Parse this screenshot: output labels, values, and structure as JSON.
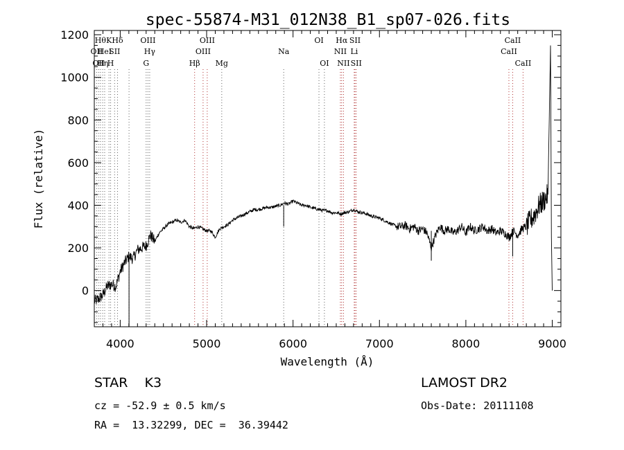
{
  "chart_data": {
    "type": "line",
    "title": "spec-55874-M31_012N38_B1_sp07-026.fits",
    "xlabel": "Wavelength (Å)",
    "ylabel": "Flux (relative)",
    "xlim": [
      3700,
      9100
    ],
    "ylim": [
      -170,
      1220
    ],
    "xticks": [
      4000,
      5000,
      6000,
      7000,
      8000,
      9000
    ],
    "yticks": [
      0,
      200,
      400,
      600,
      800,
      1000,
      1200
    ],
    "grid": false,
    "series": [
      {
        "x": [
          3700,
          3750,
          3800,
          3850,
          3900,
          3950,
          4000,
          4050,
          4100,
          4150,
          4200,
          4250,
          4300,
          4350,
          4400,
          4450,
          4500,
          4550,
          4600,
          4650,
          4700,
          4750,
          4800,
          4850,
          4900,
          4950,
          5000,
          5050,
          5100,
          5150,
          5200,
          5250,
          5300,
          5350,
          5400,
          5450,
          5500,
          5550,
          5600,
          5650,
          5700,
          5750,
          5800,
          5850,
          5900,
          5950,
          6000,
          6050,
          6100,
          6150,
          6200,
          6250,
          6300,
          6350,
          6400,
          6450,
          6500,
          6550,
          6600,
          6650,
          6700,
          6750,
          6800,
          6850,
          6900,
          6950,
          7000,
          7050,
          7100,
          7150,
          7200,
          7250,
          7300,
          7350,
          7400,
          7450,
          7500,
          7550,
          7600,
          7650,
          7700,
          7750,
          7800,
          7850,
          7900,
          7950,
          8000,
          8050,
          8100,
          8150,
          8200,
          8250,
          8300,
          8350,
          8400,
          8450,
          8500,
          8550,
          8600,
          8650,
          8700,
          8750,
          8800,
          8850,
          8900,
          8950,
          8980,
          8990,
          9000
        ],
        "values": [
          -50,
          -40,
          -20,
          20,
          30,
          20,
          90,
          130,
          160,
          150,
          190,
          200,
          210,
          260,
          230,
          270,
          290,
          310,
          320,
          330,
          320,
          330,
          300,
          290,
          300,
          290,
          280,
          280,
          250,
          290,
          300,
          310,
          330,
          340,
          350,
          360,
          370,
          380,
          380,
          385,
          390,
          390,
          395,
          400,
          410,
          405,
          420,
          410,
          400,
          400,
          390,
          385,
          380,
          375,
          375,
          365,
          365,
          360,
          365,
          370,
          380,
          370,
          365,
          360,
          350,
          345,
          340,
          330,
          320,
          310,
          300,
          300,
          305,
          290,
          300,
          280,
          290,
          270,
          200,
          260,
          300,
          280,
          290,
          270,
          280,
          300,
          270,
          300,
          280,
          290,
          300,
          280,
          290,
          270,
          280,
          270,
          250,
          280,
          260,
          290,
          300,
          330,
          360,
          400,
          420,
          450,
          1150,
          250,
          0
        ]
      }
    ],
    "lines": [
      {
        "x": 3727,
        "label": "OII",
        "row": 1
      },
      {
        "x": 3750,
        "label": "OII",
        "row": 2
      },
      {
        "x": 3771,
        "label": "Hθ",
        "row": 0
      },
      {
        "x": 3797,
        "label": "Hη",
        "row": 2
      },
      {
        "x": 3820,
        "label": "HeI",
        "row": 1
      },
      {
        "x": 3870,
        "label": "K",
        "row": 0
      },
      {
        "x": 3889,
        "label": "H",
        "row": 2
      },
      {
        "x": 3935,
        "label": "SII",
        "row": 1
      },
      {
        "x": 3969,
        "label": "Hδ",
        "row": 0
      },
      {
        "x": 4102,
        "label": "",
        "row": -1
      },
      {
        "x": 4300,
        "label": "G",
        "row": 2
      },
      {
        "x": 4321,
        "label": "OIII",
        "row": 0
      },
      {
        "x": 4341,
        "label": "Hγ",
        "row": 1
      },
      {
        "x": 4861,
        "label": "Hβ",
        "row": 2
      },
      {
        "x": 4959,
        "label": "OIII",
        "row": 1
      },
      {
        "x": 5007,
        "label": "OIII",
        "row": 0
      },
      {
        "x": 5175,
        "label": "Mg",
        "row": 2
      },
      {
        "x": 5892,
        "label": "Na",
        "row": 1
      },
      {
        "x": 6300,
        "label": "OI",
        "row": 0
      },
      {
        "x": 6363,
        "label": "OI",
        "row": 2
      },
      {
        "x": 6548,
        "label": "NII",
        "row": 1
      },
      {
        "x": 6563,
        "label": "Hα",
        "row": 0
      },
      {
        "x": 6584,
        "label": "NII",
        "row": 2
      },
      {
        "x": 6708,
        "label": "Li",
        "row": 1
      },
      {
        "x": 6717,
        "label": "SII",
        "row": 0
      },
      {
        "x": 6731,
        "label": "SII",
        "row": 2
      },
      {
        "x": 8498,
        "label": "CaII",
        "row": 1
      },
      {
        "x": 8542,
        "label": "CaII",
        "row": 0
      },
      {
        "x": 8662,
        "label": "CaII",
        "row": 2
      }
    ]
  },
  "info": {
    "object": "STAR    K3",
    "cz": "cz = -52.9 ± 0.5 km/s",
    "radec": "RA =  13.32299, DEC =  36.39442",
    "survey": "LAMOST DR2",
    "obsdate": "Obs-Date: 20111108"
  }
}
